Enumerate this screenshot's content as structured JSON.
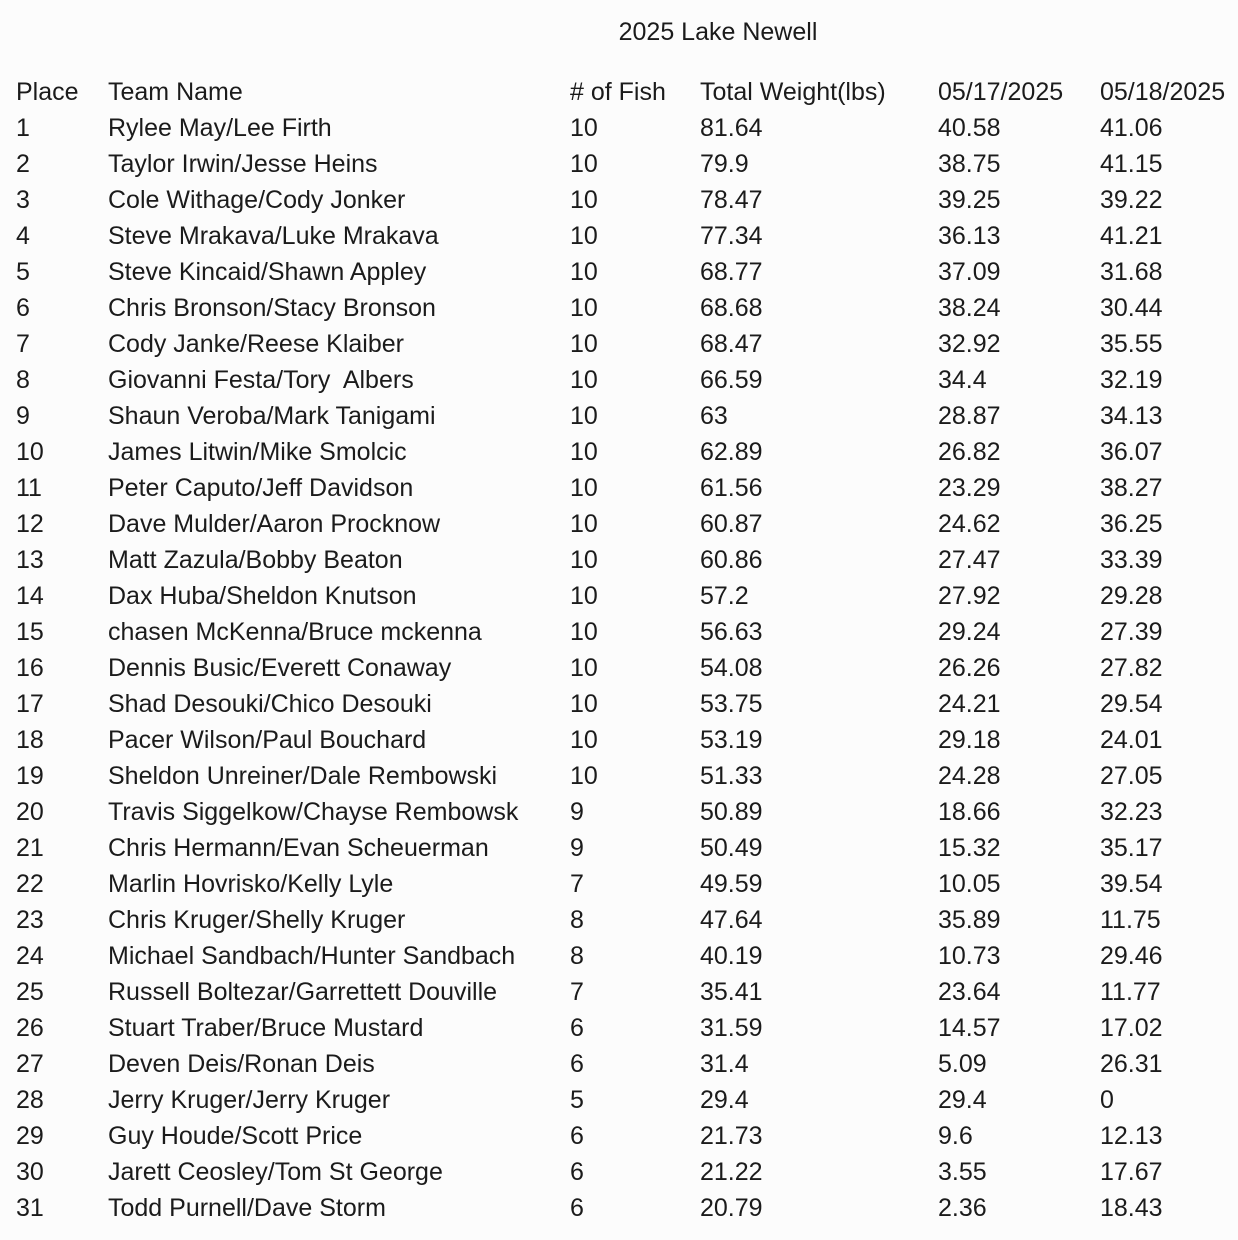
{
  "title": "2025 Lake Newell",
  "table": {
    "columns": [
      "Place",
      "Team Name",
      "# of Fish",
      "Total Weight(lbs)",
      "05/17/2025",
      "05/18/2025"
    ],
    "rows": [
      [
        "1",
        "Rylee May/Lee Firth",
        "10",
        "81.64",
        "40.58",
        "41.06"
      ],
      [
        "2",
        "Taylor Irwin/Jesse Heins",
        "10",
        "79.9",
        "38.75",
        "41.15"
      ],
      [
        "3",
        "Cole Withage/Cody Jonker",
        "10",
        "78.47",
        "39.25",
        "39.22"
      ],
      [
        "4",
        "Steve Mrakava/Luke Mrakava",
        "10",
        "77.34",
        "36.13",
        "41.21"
      ],
      [
        "5",
        "Steve Kincaid/Shawn Appley",
        "10",
        "68.77",
        "37.09",
        "31.68"
      ],
      [
        "6",
        "Chris Bronson/Stacy Bronson",
        "10",
        "68.68",
        "38.24",
        "30.44"
      ],
      [
        "7",
        "Cody Janke/Reese Klaiber",
        "10",
        "68.47",
        "32.92",
        "35.55"
      ],
      [
        "8",
        "Giovanni Festa/Tory  Albers",
        "10",
        "66.59",
        "34.4",
        "32.19"
      ],
      [
        "9",
        "Shaun Veroba/Mark Tanigami",
        "10",
        "63",
        "28.87",
        "34.13"
      ],
      [
        "10",
        "James Litwin/Mike Smolcic",
        "10",
        "62.89",
        "26.82",
        "36.07"
      ],
      [
        "11",
        "Peter Caputo/Jeff Davidson",
        "10",
        "61.56",
        "23.29",
        "38.27"
      ],
      [
        "12",
        "Dave Mulder/Aaron Procknow",
        "10",
        "60.87",
        "24.62",
        "36.25"
      ],
      [
        "13",
        "Matt Zazula/Bobby Beaton",
        "10",
        "60.86",
        "27.47",
        "33.39"
      ],
      [
        "14",
        "Dax Huba/Sheldon Knutson",
        "10",
        "57.2",
        "27.92",
        "29.28"
      ],
      [
        "15",
        "chasen McKenna/Bruce mckenna",
        "10",
        "56.63",
        "29.24",
        "27.39"
      ],
      [
        "16",
        "Dennis Busic/Everett Conaway",
        "10",
        "54.08",
        "26.26",
        "27.82"
      ],
      [
        "17",
        "Shad Desouki/Chico Desouki",
        "10",
        "53.75",
        "24.21",
        "29.54"
      ],
      [
        "18",
        "Pacer Wilson/Paul Bouchard",
        "10",
        "53.19",
        "29.18",
        "24.01"
      ],
      [
        "19",
        "Sheldon Unreiner/Dale Rembowski",
        "10",
        "51.33",
        "24.28",
        "27.05"
      ],
      [
        "20",
        "Travis Siggelkow/Chayse Rembowsk",
        "9",
        "50.89",
        "18.66",
        "32.23"
      ],
      [
        "21",
        "Chris Hermann/Evan Scheuerman",
        "9",
        "50.49",
        "15.32",
        "35.17"
      ],
      [
        "22",
        "Marlin Hovrisko/Kelly Lyle",
        "7",
        "49.59",
        "10.05",
        "39.54"
      ],
      [
        "23",
        "Chris Kruger/Shelly Kruger",
        "8",
        "47.64",
        "35.89",
        "11.75"
      ],
      [
        "24",
        "Michael Sandbach/Hunter Sandbach",
        "8",
        "40.19",
        "10.73",
        "29.46"
      ],
      [
        "25",
        "Russell Boltezar/Garrettett Douville",
        "7",
        "35.41",
        "23.64",
        "11.77"
      ],
      [
        "26",
        "Stuart Traber/Bruce Mustard",
        "6",
        "31.59",
        "14.57",
        "17.02"
      ],
      [
        "27",
        "Deven Deis/Ronan Deis",
        "6",
        "31.4",
        "5.09",
        "26.31"
      ],
      [
        "28",
        "Jerry Kruger/Jerry Kruger",
        "5",
        "29.4",
        "29.4",
        "0"
      ],
      [
        "29",
        "Guy Houde/Scott Price",
        "6",
        "21.73",
        "9.6",
        "12.13"
      ],
      [
        "30",
        "Jarett Ceosley/Tom St George",
        "6",
        "21.22",
        "3.55",
        "17.67"
      ],
      [
        "31",
        "Todd Purnell/Dave Storm",
        "6",
        "20.79",
        "2.36",
        "18.43"
      ]
    ]
  }
}
